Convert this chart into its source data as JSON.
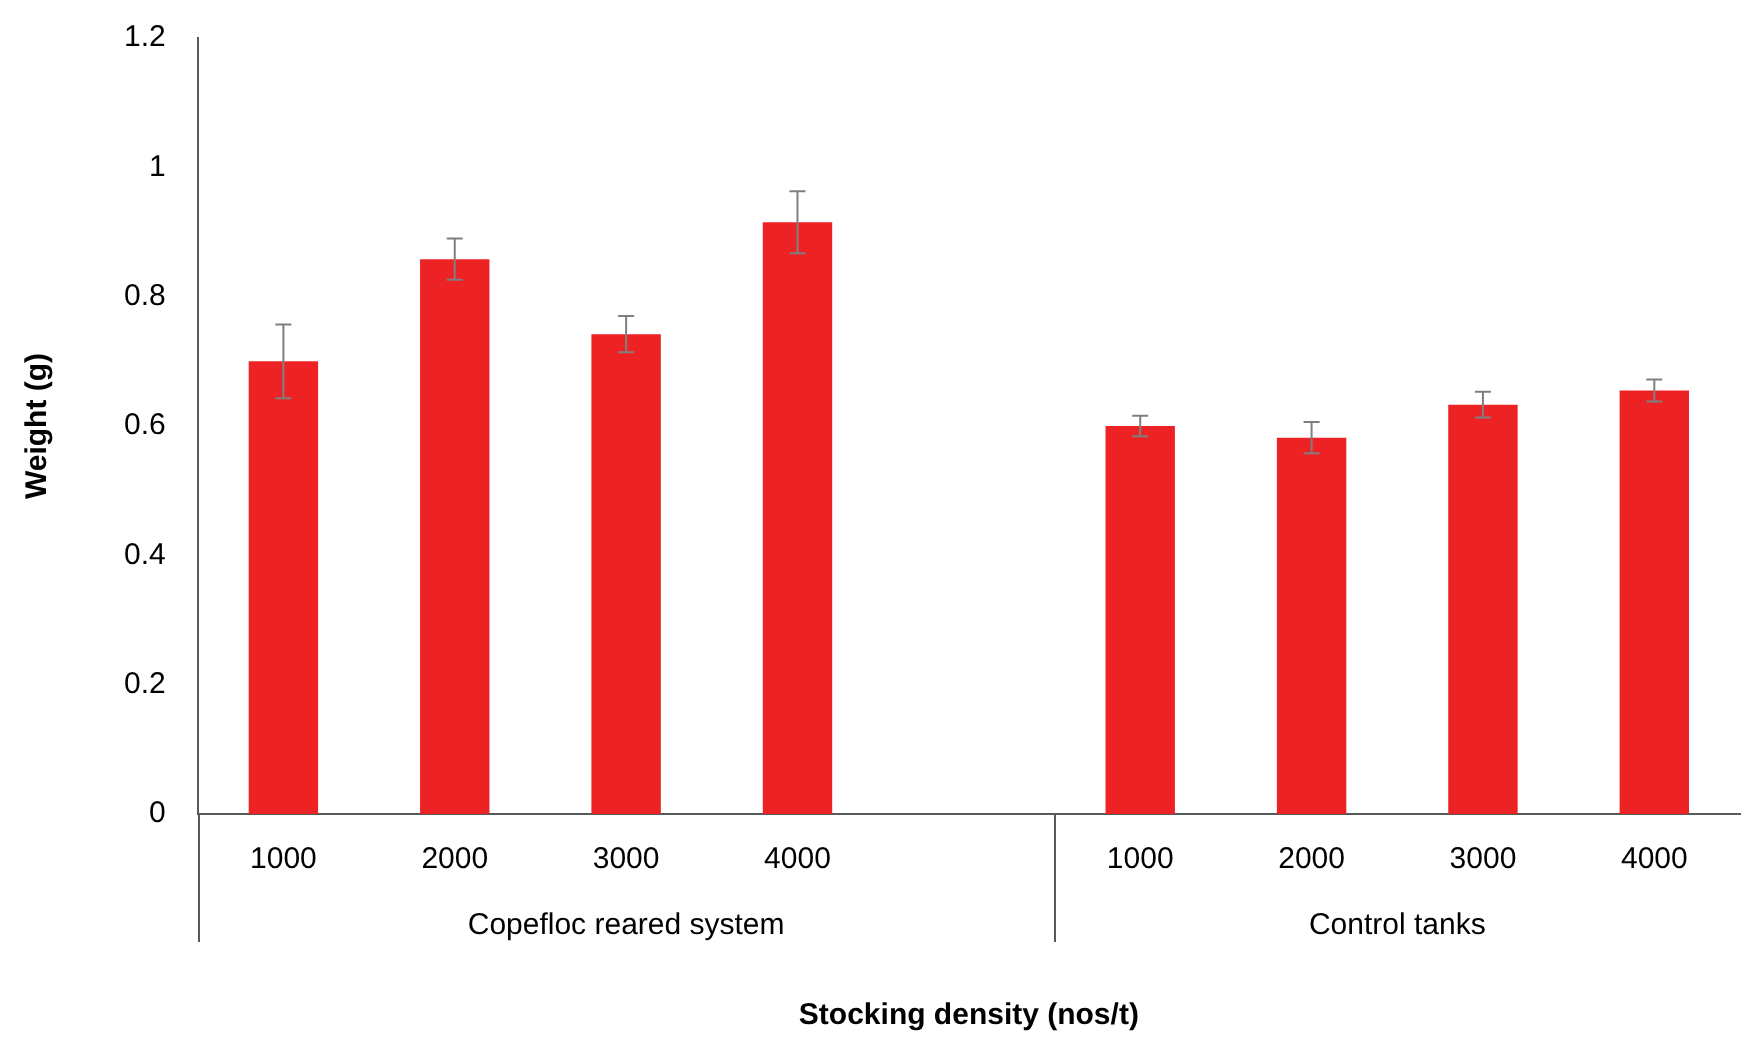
{
  "chart_data": {
    "type": "bar",
    "xlabel": "Stocking density (nos/t)",
    "ylabel": "Weight (g)",
    "categories": [
      "1000",
      "2000",
      "3000",
      "4000",
      null,
      "1000",
      "2000",
      "3000",
      "4000"
    ],
    "values": [
      0.7,
      0.858,
      0.742,
      0.915,
      null,
      0.6,
      0.582,
      0.633,
      0.655
    ],
    "errors": [
      0.057,
      0.032,
      0.028,
      0.048,
      null,
      0.016,
      0.024,
      0.02,
      0.017
    ],
    "color": "#ed2224",
    "ylim": [
      0,
      1.2
    ],
    "yticks": [
      0,
      0.2,
      0.4,
      0.6,
      0.8,
      1,
      1.2
    ],
    "grid": false,
    "legend": false,
    "annotations": [
      "Copefloc reared system",
      "Control tanks"
    ]
  }
}
